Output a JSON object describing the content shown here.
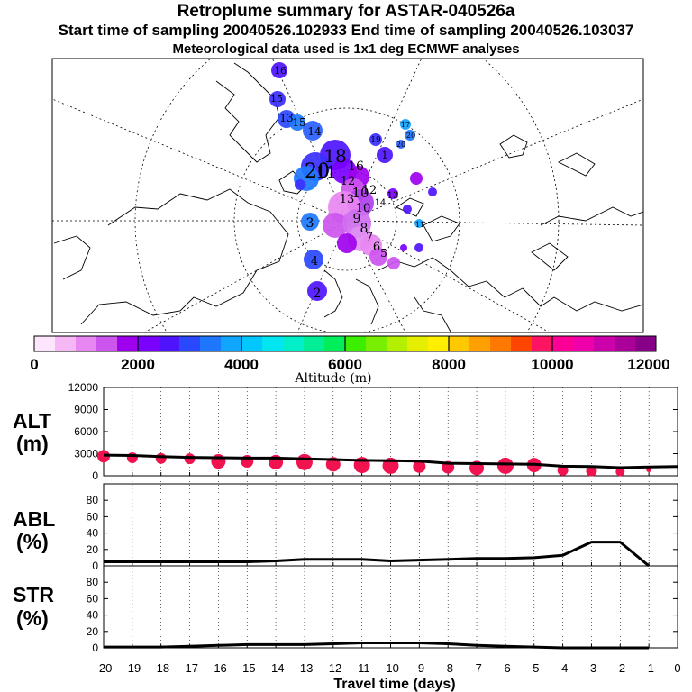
{
  "title": {
    "line1": "Retroplume summary for ASTAR-040526a",
    "line2": "Start time of sampling 20040526.102933     End time of sampling 20040526.103037",
    "line3": "Meteorological data used is 1x1 deg ECMWF analyses"
  },
  "colors": {
    "bubble_red": "#f0134f",
    "line": "#000000",
    "scale": [
      "#fde6fd",
      "#f5b8f5",
      "#e987f2",
      "#cc55ee",
      "#9e00ee",
      "#7a00ff",
      "#4e14ff",
      "#2a48ff",
      "#1e78ff",
      "#10a5ff",
      "#00c8ff",
      "#00e5f0",
      "#00eec8",
      "#00ee96",
      "#00ee5a",
      "#3cee00",
      "#78ee00",
      "#b4ee00",
      "#e6ee00",
      "#ffee00",
      "#ffc800",
      "#ffa000",
      "#ff7800",
      "#ff4600",
      "#ff1464",
      "#ff0096",
      "#ee00aa",
      "#cc00aa",
      "#aa0099",
      "#880088"
    ]
  },
  "colorbar": {
    "ticks": [
      "0",
      "2000",
      "4000",
      "6000",
      "8000",
      "10000",
      "12000"
    ],
    "label": "Altitude (m)"
  },
  "map_labels": [
    "16",
    "15",
    "13",
    "15",
    "14",
    "20",
    "18",
    "11",
    "16",
    "12",
    "10",
    "12",
    "13",
    "10",
    "9",
    "8",
    "7",
    "6",
    "5",
    "4",
    "3",
    "2",
    "1",
    "19",
    "17",
    "20",
    "20",
    "11",
    "14",
    "13"
  ],
  "chart_data": [
    {
      "type": "line",
      "panel": "ALT",
      "ylabel": "ALT",
      "yunit": "(m)",
      "ylim": [
        0,
        12000
      ],
      "yticks": [
        "12000",
        "9000",
        "6000",
        "3000",
        "0"
      ],
      "x": [
        -20,
        -19,
        -18,
        -17,
        -16,
        -15,
        -14,
        -13,
        -12,
        -11,
        -10,
        -9,
        -8,
        -7,
        -6,
        -5,
        -4,
        -3,
        -2,
        -1,
        0
      ],
      "values": [
        2800,
        2750,
        2600,
        2500,
        2450,
        2400,
        2400,
        2300,
        2200,
        2100,
        2050,
        2000,
        1700,
        1650,
        1600,
        1550,
        1300,
        1250,
        1100,
        1200,
        1250
      ],
      "bubbles": [
        2900,
        2700,
        2600,
        2550,
        2200,
        2200,
        2100,
        2100,
        1800,
        1700,
        1600,
        1500,
        1400,
        1300,
        1600,
        1700,
        1000,
        900,
        800,
        1100,
        1200
      ]
    },
    {
      "type": "line",
      "panel": "ABL",
      "ylabel": "ABL",
      "yunit": "(%)",
      "ylim": [
        0,
        100
      ],
      "yticks": [
        "80",
        "60",
        "40",
        "20",
        "0"
      ],
      "x": [
        -20,
        -19,
        -18,
        -17,
        -16,
        -15,
        -14,
        -13,
        -12,
        -11,
        -10,
        -9,
        -8,
        -7,
        -6,
        -5,
        -4,
        -3,
        -2,
        -1
      ],
      "values": [
        5,
        5,
        5,
        5,
        5,
        5,
        6,
        8,
        8,
        8,
        6,
        7,
        8,
        9,
        9,
        10,
        13,
        29,
        29,
        0
      ]
    },
    {
      "type": "line",
      "panel": "STR",
      "ylabel": "STR",
      "yunit": "(%)",
      "ylim": [
        0,
        100
      ],
      "yticks": [
        "80",
        "60",
        "40",
        "20",
        "0"
      ],
      "x": [
        -20,
        -19,
        -18,
        -17,
        -16,
        -15,
        -14,
        -13,
        -12,
        -11,
        -10,
        -9,
        -8,
        -7,
        -6,
        -5,
        -4,
        -3,
        -2,
        -1
      ],
      "values": [
        1,
        1,
        1,
        2,
        3,
        4,
        4,
        4,
        5,
        6,
        6,
        6,
        5,
        3,
        2,
        1,
        0,
        0,
        0,
        0
      ]
    }
  ],
  "xaxis": {
    "ticks": [
      "-20",
      "-19",
      "-18",
      "-17",
      "-16",
      "-15",
      "-14",
      "-13",
      "-12",
      "-11",
      "-10",
      "-9",
      "-8",
      "-7",
      "-6",
      "-5",
      "-4",
      "-3",
      "-2",
      "-1",
      "0"
    ],
    "label": "Travel time (days)"
  }
}
